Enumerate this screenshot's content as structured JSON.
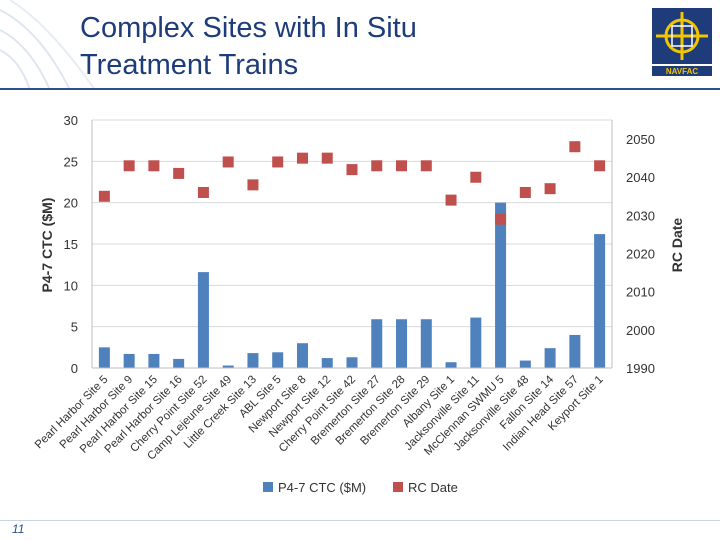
{
  "header": {
    "title_line1": "Complex Sites with In Situ",
    "title_line2": "Treatment Trains",
    "logo_text": "NAVFAC"
  },
  "footer": {
    "slide_number": "11"
  },
  "colors": {
    "bar": "#4f81bd",
    "marker": "#c0504d",
    "title": "#1f3c7a",
    "grid": "#d9d9d9"
  },
  "chart_data": {
    "type": "bar",
    "title": "",
    "categories": [
      "Pearl Harbor Site 5",
      "Pearl Harbor Site 9",
      "Pearl Harbor Site 15",
      "Pearl Harbor Site 16",
      "Cherry Point Site 52",
      "Camp Lejeune Site 49",
      "Little Creek Site 13",
      "ABL Site 5",
      "Newport Site 8",
      "Newport Site 12",
      "Cherry Point Site 42",
      "Bremerton Site 27",
      "Bremerton Site 28",
      "Bremerton Site 29",
      "Albany Site 1",
      "Jacksonville Site 11",
      "McClennan SWMU 5",
      "Jacksonville Site 48",
      "Fallon Site 14",
      "Indian Head Site 57",
      "Keyport Site 1"
    ],
    "series": [
      {
        "name": "P4-7 CTC ($M)",
        "kind": "bar",
        "axis": "left",
        "values": [
          2.5,
          1.7,
          1.7,
          1.1,
          11.6,
          0.3,
          1.8,
          1.9,
          3.0,
          1.2,
          1.3,
          5.9,
          5.9,
          5.9,
          0.7,
          6.1,
          20.0,
          0.9,
          2.4,
          4.0,
          16.2
        ]
      },
      {
        "name": "RC Date",
        "kind": "marker",
        "axis": "right",
        "values": [
          2035,
          2043,
          2043,
          2041,
          2036,
          2044,
          2038,
          2044,
          2045,
          2045,
          2042,
          2043,
          2043,
          2043,
          2034,
          2040,
          2029,
          2036,
          2037,
          2048,
          2043
        ]
      }
    ],
    "xlabel": "",
    "ylabel": "P4-7 CTC ($M)",
    "y2label": "RC Date",
    "ylim": [
      0,
      30
    ],
    "y2lim": [
      1990,
      2055
    ],
    "yticks": [
      "0",
      "5",
      "10",
      "15",
      "20",
      "25",
      "30"
    ],
    "y2ticks": [
      "1990",
      "2000",
      "2010",
      "2020",
      "2030",
      "2040",
      "2050"
    ],
    "legend": {
      "position": "bottom",
      "entries": [
        "P4-7 CTC ($M)",
        "RC Date"
      ]
    },
    "grid": true
  }
}
